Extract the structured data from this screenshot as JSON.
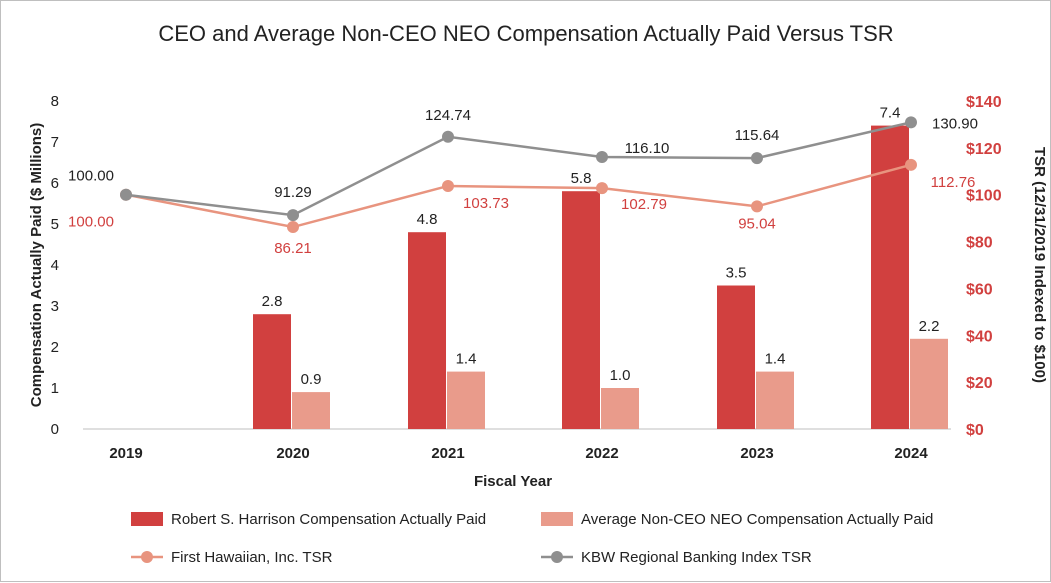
{
  "chart_data": {
    "type": "bar",
    "title": "CEO and Average Non-CEO NEO Compensation Actually Paid Versus TSR",
    "xlabel": "Fiscal Year",
    "ylabel": "Compensation Actually Paid ($ Millions)",
    "y2label": "TSR (12/31/2019 Indexed to $100)",
    "categories": [
      "2019",
      "2020",
      "2021",
      "2022",
      "2023",
      "2024"
    ],
    "ylim": [
      0,
      8
    ],
    "y2lim": [
      0,
      140
    ],
    "yticks": [
      "0",
      "1",
      "2",
      "3",
      "4",
      "5",
      "6",
      "7",
      "8"
    ],
    "y2ticks": [
      "$0",
      "$20",
      "$40",
      "$60",
      "$80",
      "$100",
      "$120",
      "$140"
    ],
    "grid": false,
    "legend_position": "bottom",
    "bar_series": [
      {
        "name": "Robert S. Harrison Compensation Actually Paid",
        "color": "#d1403f",
        "values": [
          null,
          2.8,
          4.8,
          5.8,
          3.5,
          7.4
        ],
        "labels": [
          "",
          "2.8",
          "4.8",
          "5.8",
          "3.5",
          "7.4"
        ]
      },
      {
        "name": "Average Non-CEO NEO Compensation Actually Paid",
        "color": "#e99b8b",
        "values": [
          null,
          0.9,
          1.4,
          1.0,
          1.4,
          2.2
        ],
        "labels": [
          "",
          "0.9",
          "1.4",
          "1.0",
          "1.4",
          "2.2"
        ]
      }
    ],
    "line_series": [
      {
        "name": "First Hawaiian, Inc. TSR",
        "axis": "right",
        "color": "#e8947f",
        "label_color": "#d1403f",
        "values": [
          100.0,
          86.21,
          103.73,
          102.79,
          95.04,
          112.76
        ],
        "labels": [
          "100.00",
          "86.21",
          "103.73",
          "102.79",
          "95.04",
          "112.76"
        ]
      },
      {
        "name": "KBW Regional Banking Index TSR",
        "axis": "right",
        "color": "#8f8f8f",
        "label_color": "#222222",
        "values": [
          100.0,
          91.29,
          124.74,
          116.1,
          115.64,
          130.9
        ],
        "labels": [
          "100.00",
          "91.29",
          "124.74",
          "116.10",
          "115.64",
          "130.90"
        ]
      }
    ],
    "colors": {
      "left_axis_text": "#222222",
      "right_axis_text": "#d1403f",
      "axis_line": "#bfbfbf"
    }
  }
}
